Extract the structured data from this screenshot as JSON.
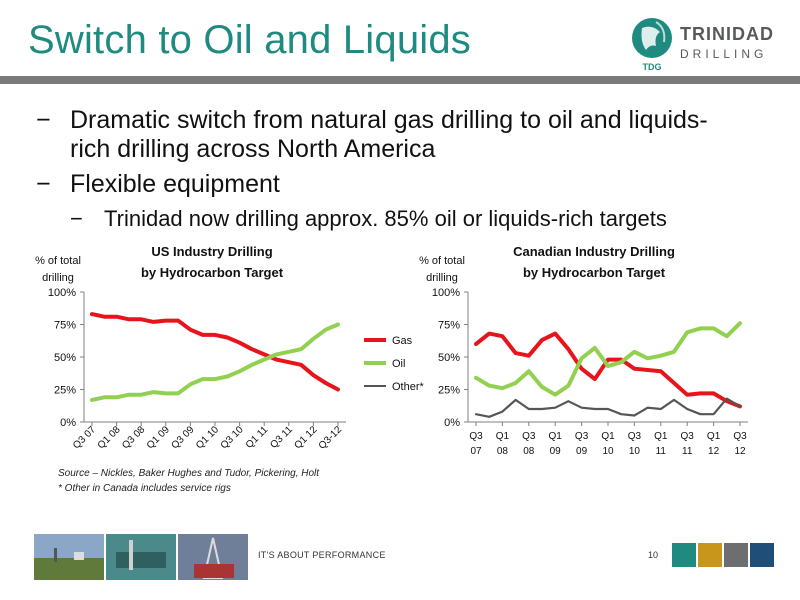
{
  "slide": {
    "title": "Switch to Oil and Liquids",
    "logo_text_line1": "TRINIDAD",
    "logo_text_line2": "DRILLING",
    "logo_badge": "TDG",
    "bullets": [
      {
        "level": 1,
        "marker": "−",
        "text_line1": "Dramatic switch from natural gas drilling to oil and liquids-",
        "text_line2": "rich drilling across North America"
      },
      {
        "level": 1,
        "marker": "−",
        "text_line1": "Flexible equipment"
      },
      {
        "level": 2,
        "marker": "−",
        "text_line1": "Trinidad now drilling approx. 85% oil or liquids-rich targets"
      }
    ],
    "source_line1": "Source – Nickles, Baker Hughes and Tudor, Pickering, Holt",
    "source_line2": "* Other in Canada includes service rigs",
    "footer": "IT'S ABOUT PERFORMANCE",
    "page_number": "10",
    "footer_squares": [
      "#1f8a80",
      "#c8961a",
      "#6d6e70",
      "#1f4e79"
    ]
  },
  "colors": {
    "gas": "#e8141b",
    "oil": "#92d050",
    "other": "#555555",
    "axis": "#808080",
    "title": "#1f8a80",
    "rule": "#7a7a7a"
  },
  "chart_data": [
    {
      "type": "line",
      "title_line1": "US Industry Drilling",
      "title_line2": "by Hydrocarbon Target",
      "ylabel_line1": "% of total",
      "ylabel_line2": "drilling",
      "ylim": [
        0,
        100
      ],
      "yticks": [
        "0%",
        "25%",
        "50%",
        "75%",
        "100%"
      ],
      "categories": [
        "Q3 07",
        "Q4 07",
        "Q1 08",
        "Q2 08",
        "Q3 08",
        "Q4 08",
        "Q1 09",
        "Q2 09",
        "Q3 09",
        "Q4 09",
        "Q1 10",
        "Q2 10",
        "Q3 10",
        "Q4 10",
        "Q1 11",
        "Q2 11",
        "Q3 11",
        "Q4 11",
        "Q1 12",
        "Q2 12",
        "Q3-12"
      ],
      "tick_labels": [
        "Q3 07",
        "Q1 08",
        "Q3 08",
        "Q1 09",
        "Q3 09",
        "Q1 10",
        "Q3 10",
        "Q1 11",
        "Q3 11",
        "Q1 12",
        "Q3-12"
      ],
      "series": [
        {
          "name": "Gas",
          "values": [
            83,
            81,
            81,
            79,
            79,
            77,
            78,
            78,
            71,
            67,
            67,
            65,
            61,
            56,
            52,
            48,
            46,
            44,
            36,
            30,
            25
          ]
        },
        {
          "name": "Oil",
          "values": [
            17,
            19,
            19,
            21,
            21,
            23,
            22,
            22,
            29,
            33,
            33,
            35,
            39,
            44,
            48,
            52,
            54,
            56,
            64,
            71,
            75
          ]
        }
      ],
      "grid": false,
      "legend": "right"
    },
    {
      "type": "line",
      "title_line1": "Canadian Industry Drilling",
      "title_line2": "by Hydrocarbon Target",
      "ylabel_line1": "% of total",
      "ylabel_line2": "drilling",
      "ylim": [
        0,
        100
      ],
      "yticks": [
        "0%",
        "25%",
        "50%",
        "75%",
        "100%"
      ],
      "categories": [
        "Q3 07",
        "Q4 07",
        "Q1 08",
        "Q2 08",
        "Q3 08",
        "Q4 08",
        "Q1 09",
        "Q2 09",
        "Q3 09",
        "Q4 09",
        "Q1 10",
        "Q2 10",
        "Q3 10",
        "Q4 10",
        "Q1 11",
        "Q2 11",
        "Q3 11",
        "Q4 11",
        "Q1 12",
        "Q2 12",
        "Q3 12"
      ],
      "tick_labels": [
        [
          "Q3",
          "07"
        ],
        [
          "Q1",
          "08"
        ],
        [
          "Q3",
          "08"
        ],
        [
          "Q1",
          "09"
        ],
        [
          "Q3",
          "09"
        ],
        [
          "Q1",
          "10"
        ],
        [
          "Q3",
          "10"
        ],
        [
          "Q1",
          "11"
        ],
        [
          "Q3",
          "11"
        ],
        [
          "Q1",
          "12"
        ],
        [
          "Q3",
          "12"
        ]
      ],
      "series": [
        {
          "name": "Gas",
          "values": [
            60,
            68,
            66,
            53,
            51,
            63,
            68,
            56,
            41,
            33,
            48,
            48,
            41,
            40,
            39,
            30,
            21,
            22,
            22,
            16,
            12
          ]
        },
        {
          "name": "Oil",
          "values": [
            34,
            28,
            26,
            30,
            39,
            27,
            21,
            28,
            49,
            57,
            43,
            46,
            54,
            49,
            51,
            54,
            69,
            72,
            72,
            66,
            76
          ]
        },
        {
          "name": "Other*",
          "values": [
            6,
            4,
            8,
            17,
            10,
            10,
            11,
            16,
            11,
            10,
            10,
            6,
            5,
            11,
            10,
            17,
            10,
            6,
            6,
            18,
            12
          ]
        }
      ],
      "grid": false,
      "legend": "left"
    }
  ]
}
